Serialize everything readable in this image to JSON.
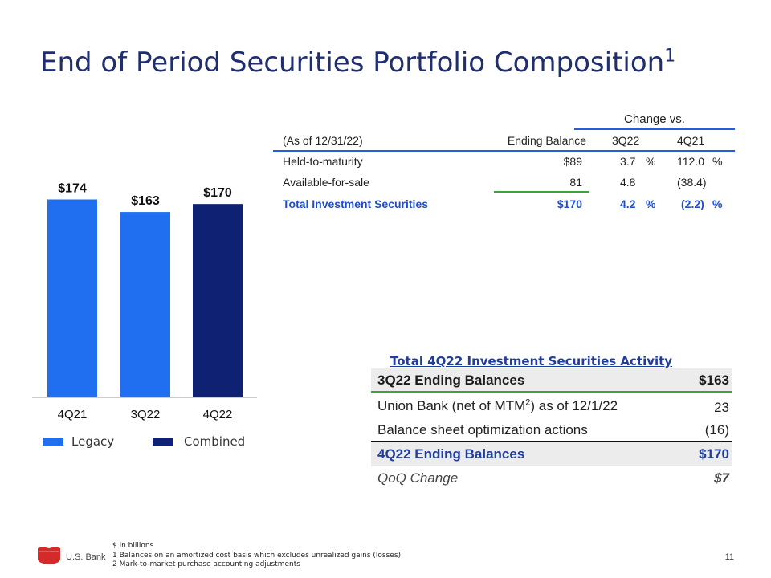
{
  "page": {
    "title": "End of Period Securities Portfolio Composition",
    "title_sup": "1",
    "page_number": "11"
  },
  "chart_data": {
    "type": "bar",
    "categories": [
      "4Q21",
      "3Q22",
      "4Q22"
    ],
    "values": [
      174,
      163,
      170
    ],
    "value_labels": [
      "$174",
      "$163",
      "$170"
    ],
    "series_types": [
      "Legacy",
      "Legacy",
      "Combined"
    ],
    "unit": "$ in billions",
    "ylim": [
      0,
      180
    ],
    "legend": [
      {
        "name": "Legacy",
        "color": "#1f6ff0"
      },
      {
        "name": "Combined",
        "color": "#0e2172"
      }
    ],
    "legend_position": "bottom",
    "grid": false
  },
  "balances_table": {
    "change_header": "Change vs.",
    "columns": [
      "(As of 12/31/22)",
      "Ending Balance",
      "3Q22",
      "4Q21"
    ],
    "rows": [
      {
        "label": "Held-to-maturity",
        "balance": "$89",
        "q3": "3.7",
        "q3_pct": "%",
        "q4": "112.0",
        "q4_pct": "%"
      },
      {
        "label": "Available-for-sale",
        "balance": "81",
        "q3": "4.8",
        "q3_pct": "",
        "q4": "(38.4)",
        "q4_pct": ""
      },
      {
        "label": "Total Investment Securities",
        "balance": "$170",
        "q3": "4.2",
        "q3_pct": "%",
        "q4": "(2.2)",
        "q4_pct": "%"
      }
    ]
  },
  "activity": {
    "title": "Total 4Q22 Investment Securities Activity",
    "rows": [
      {
        "label": "3Q22 Ending Balances",
        "value": "$163"
      },
      {
        "label_pre": "Union Bank (net of MTM",
        "label_sup": "2",
        "label_post": ") as of 12/1/22",
        "value": "23"
      },
      {
        "label": "Balance sheet optimization actions",
        "value": "(16)"
      },
      {
        "label": "4Q22 Ending Balances",
        "value": "$170"
      },
      {
        "label": "QoQ Change",
        "value": "$7"
      }
    ]
  },
  "footer": {
    "brand": "U.S. Bank",
    "notes": [
      "$ in billions",
      "1 Balances on an amortized cost basis which excludes unrealized gains (losses)",
      "2 Mark-to-market purchase accounting adjustments"
    ]
  }
}
